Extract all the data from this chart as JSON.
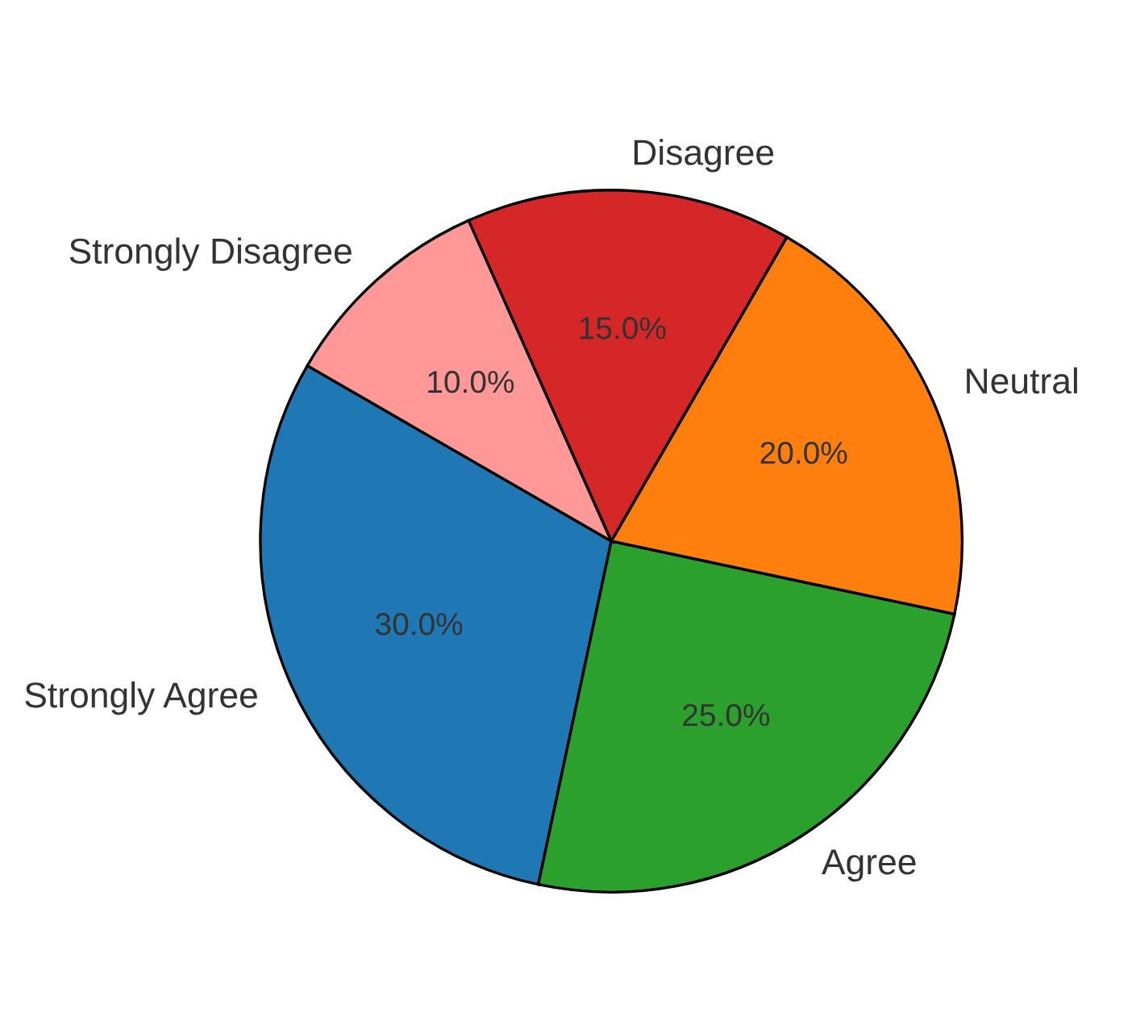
{
  "chart_data": {
    "type": "pie",
    "categories": [
      "Strongly Agree",
      "Agree",
      "Neutral",
      "Disagree",
      "Strongly Disagree"
    ],
    "values": [
      30,
      25,
      20,
      15,
      10
    ],
    "colors": [
      "#1f77b4",
      "#2ca02c",
      "#ff7f0e",
      "#d62728",
      "#ff9896"
    ],
    "value_labels": [
      "30.0%",
      "25.0%",
      "20.0%",
      "15.0%",
      "10.0%"
    ]
  }
}
